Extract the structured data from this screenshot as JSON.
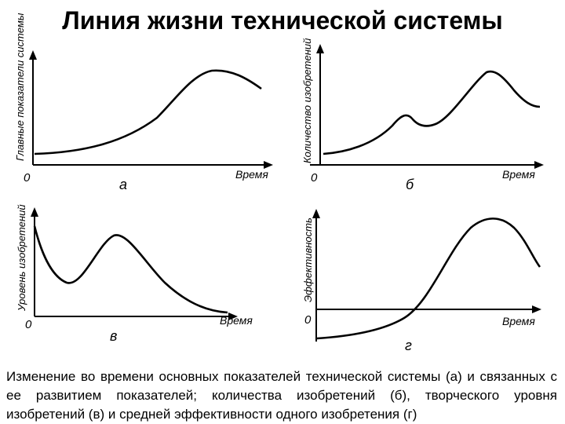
{
  "title": "Линия жизни технической системы",
  "panels": {
    "a": {
      "ylabel": "Главные показатели системы",
      "xlabel": "Время",
      "origin": "0",
      "letter": "а"
    },
    "b": {
      "ylabel": "Количество изобретений",
      "xlabel": "Время",
      "origin": "0",
      "letter": "б"
    },
    "v": {
      "ylabel": "Уровень изобретений",
      "xlabel": "Время",
      "origin": "0",
      "letter": "в"
    },
    "g": {
      "ylabel": "Эффективность",
      "xlabel": "Время",
      "origin": "0",
      "letter": "г"
    }
  },
  "caption": "Изменение во времени основных показателей технической системы (а) и связанных с ее развитием показателей; количества изобретений (б), творческого уровня изобретений (в) и средней эффективности одного изобретения (г)"
}
